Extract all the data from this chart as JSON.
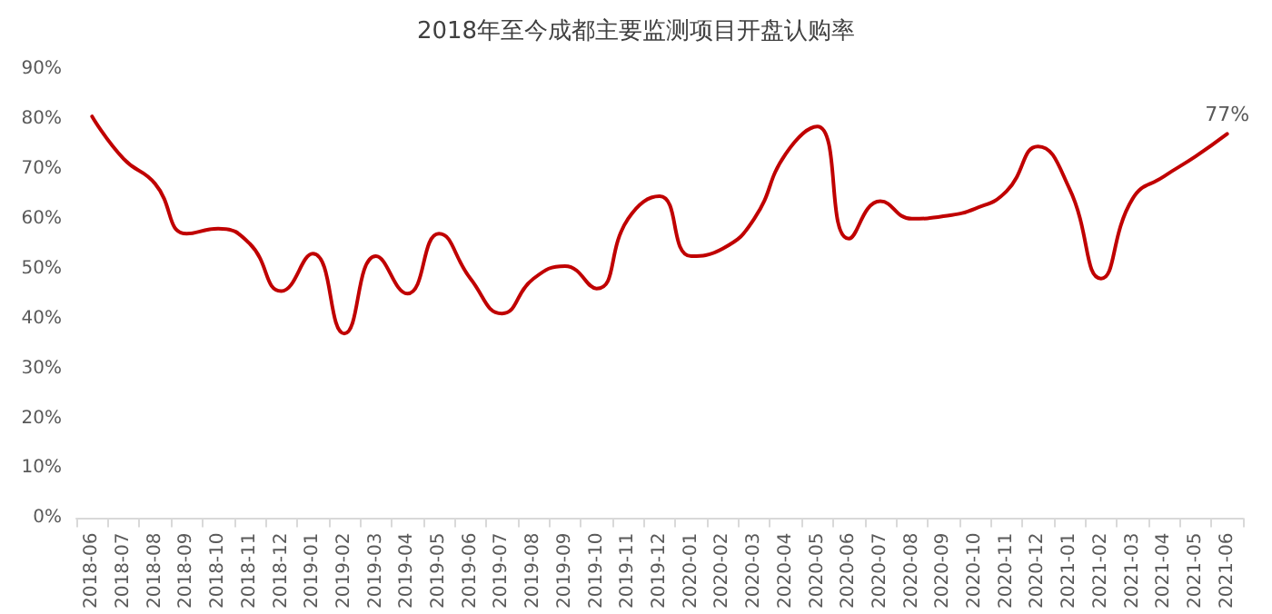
{
  "chart_data": {
    "type": "line",
    "title": "2018年至今成都主要监测项目开盘认购率",
    "categories": [
      "2018-06",
      "2018-07",
      "2018-08",
      "2018-09",
      "2018-10",
      "2018-11",
      "2018-12",
      "2019-01",
      "2019-02",
      "2019-03",
      "2019-04",
      "2019-05",
      "2019-06",
      "2019-07",
      "2019-08",
      "2019-09",
      "2019-10",
      "2019-11",
      "2019-12",
      "2020-01",
      "2020-02",
      "2020-03",
      "2020-04",
      "2020-05",
      "2020-06",
      "2020-07",
      "2020-08",
      "2020-09",
      "2020-10",
      "2020-11",
      "2020-12",
      "2021-01",
      "2021-02",
      "2021-03",
      "2021-04",
      "2021-05",
      "2021-06"
    ],
    "series": [
      {
        "color": "#c00000",
        "values": [
          80.5,
          72,
          67,
          57,
          58,
          55,
          45.5,
          53,
          37,
          52.5,
          45,
          57,
          48,
          41,
          48,
          50.5,
          46,
          60,
          64.5,
          52.5,
          54,
          60,
          73,
          78.5,
          56,
          63.5,
          60,
          60.5,
          62,
          65.5,
          74.5,
          66,
          48,
          64,
          68.5,
          72.5,
          77
        ],
        "value_labels": [
          null,
          null,
          null,
          null,
          null,
          null,
          null,
          null,
          null,
          null,
          null,
          null,
          null,
          null,
          null,
          null,
          null,
          null,
          null,
          null,
          null,
          null,
          null,
          null,
          null,
          null,
          null,
          null,
          null,
          null,
          null,
          null,
          null,
          null,
          null,
          null,
          "77%"
        ]
      }
    ],
    "ylim": [
      0,
      90
    ],
    "yticks": [
      {
        "value": 0,
        "label": "0%"
      },
      {
        "value": 10,
        "label": "10%"
      },
      {
        "value": 20,
        "label": "20%"
      },
      {
        "value": 30,
        "label": "30%"
      },
      {
        "value": 40,
        "label": "40%"
      },
      {
        "value": 50,
        "label": "50%"
      },
      {
        "value": 60,
        "label": "60%"
      },
      {
        "value": 70,
        "label": "70%"
      },
      {
        "value": 80,
        "label": "80%"
      },
      {
        "value": 90,
        "label": "90%"
      }
    ],
    "grid": false,
    "marker": "none",
    "line_style": "solid"
  }
}
